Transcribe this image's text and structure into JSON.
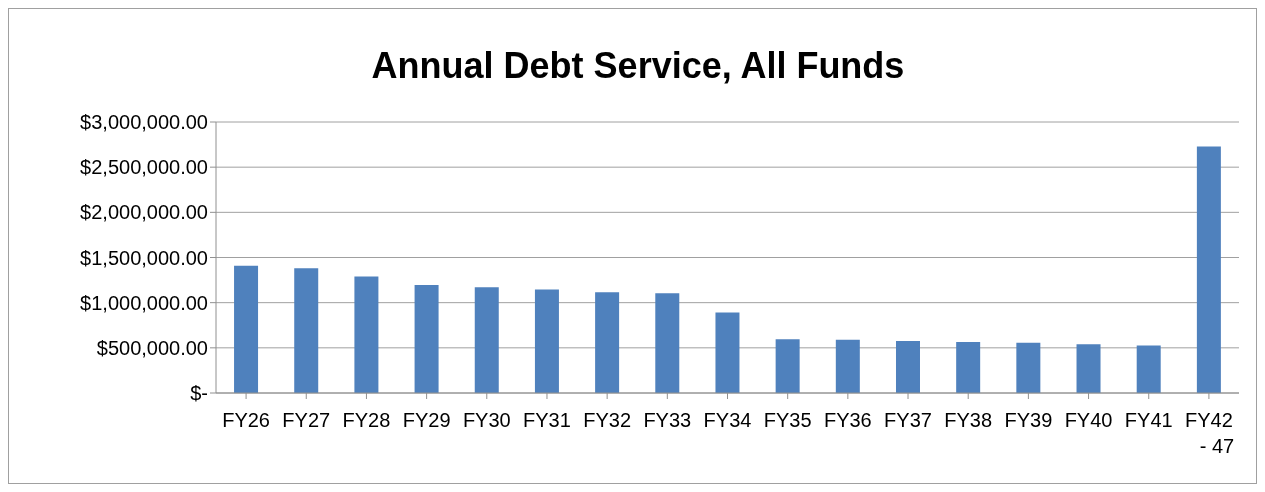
{
  "chart_data": {
    "type": "bar",
    "title": "Annual Debt Service, All Funds",
    "categories": [
      "FY26",
      "FY27",
      "FY28",
      "FY29",
      "FY30",
      "FY31",
      "FY32",
      "FY33",
      "FY34",
      "FY35",
      "FY36",
      "FY37",
      "FY38",
      "FY39",
      "FY40",
      "FY41",
      "FY42 - 47"
    ],
    "values": [
      1410000,
      1380000,
      1290000,
      1195000,
      1170000,
      1145000,
      1115000,
      1105000,
      890000,
      595000,
      590000,
      575000,
      565000,
      555000,
      540000,
      525000,
      2730000
    ],
    "color": "#4f81bd",
    "ylim": [
      0,
      3000000
    ],
    "yticks": [
      {
        "value": 0,
        "label": "$-"
      },
      {
        "value": 500000,
        "label": "$500,000.00"
      },
      {
        "value": 1000000,
        "label": "$1,000,000.00"
      },
      {
        "value": 1500000,
        "label": "$1,500,000.00"
      },
      {
        "value": 2000000,
        "label": "$2,000,000.00"
      },
      {
        "value": 2500000,
        "label": "$2,500,000.00"
      },
      {
        "value": 3000000,
        "label": "$3,000,000.00"
      }
    ],
    "grid": "y"
  }
}
